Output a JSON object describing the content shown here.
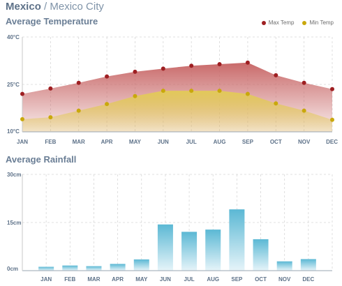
{
  "page": {
    "country": "Mexico",
    "separator": "/",
    "city": "Mexico City"
  },
  "colors": {
    "max_temp": "#9e1f22",
    "min_temp": "#c9a80c",
    "max_area": "#c96a6a",
    "min_area": "#e2c95a",
    "rain_bar_top": "#5bb8d4",
    "rain_bar_bottom": "#e6f4f9",
    "axis_text": "#5d7188",
    "grid": "#d7d7d7"
  },
  "chart_data": [
    {
      "type": "area",
      "title": "Average Temperature",
      "categories": [
        "JAN",
        "FEB",
        "MAR",
        "APR",
        "MAY",
        "JUN",
        "JUL",
        "AUG",
        "SEP",
        "OCT",
        "NOV",
        "DEC"
      ],
      "series": [
        {
          "name": "Max Temp",
          "values": [
            22,
            23.7,
            25.5,
            27.5,
            29,
            30,
            30.9,
            31.4,
            31.9,
            27.9,
            25.5,
            23.5
          ]
        },
        {
          "name": "Min Temp",
          "values": [
            14,
            14.6,
            16.7,
            18.8,
            21.3,
            23,
            23,
            23,
            22,
            19,
            16.7,
            13.8
          ]
        }
      ],
      "ylim": [
        10,
        40
      ],
      "yticks": [
        "10°C",
        "25°C",
        "40°C"
      ],
      "ytick_values": [
        10,
        25,
        40
      ],
      "grid": true,
      "legend": "top-right"
    },
    {
      "type": "bar",
      "title": "Average Rainfall",
      "categories": [
        "JAN",
        "FEB",
        "MAR",
        "APR",
        "MAY",
        "JUN",
        "JUL",
        "AUG",
        "SEP",
        "OCT",
        "NOV",
        "DEC"
      ],
      "values": [
        1.2,
        1.6,
        1.4,
        2.1,
        3.5,
        14.4,
        12.1,
        12.8,
        19.1,
        9.8,
        2.9,
        3.6
      ],
      "ylim": [
        0,
        30
      ],
      "yticks": [
        "0cm",
        "15cm",
        "30cm"
      ],
      "ytick_values": [
        0,
        15,
        30
      ],
      "grid": true
    }
  ]
}
